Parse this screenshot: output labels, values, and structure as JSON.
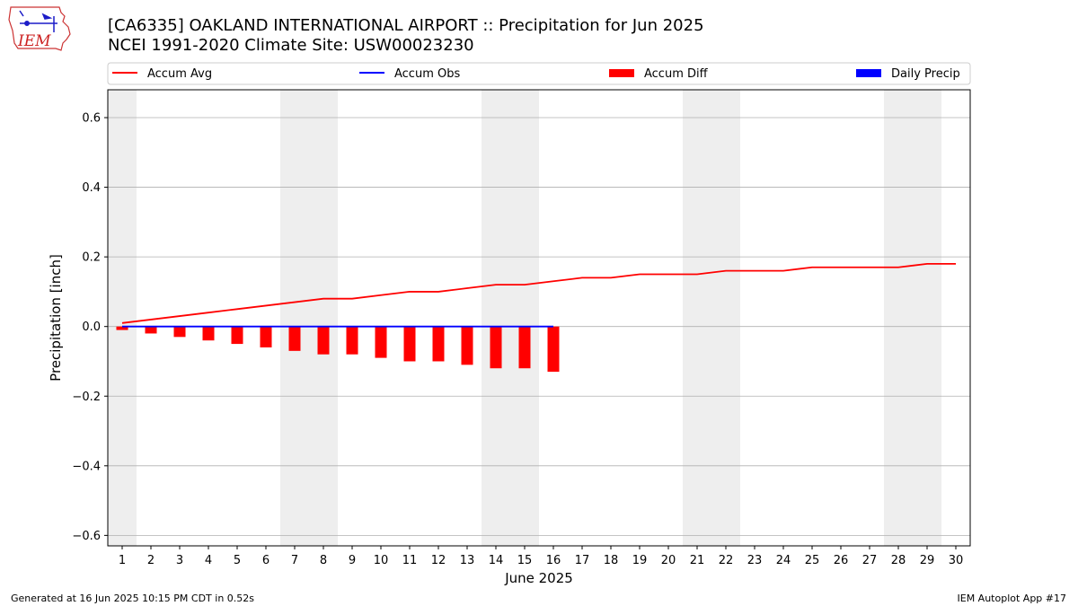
{
  "header": {
    "title": "[CA6335] OAKLAND INTERNATIONAL AIRPORT :: Precipitation for Jun 2025",
    "subtitle": "NCEI 1991-2020 Climate Site: USW00023230"
  },
  "logo": {
    "text": "IEM",
    "icon": "iem-logo-icon"
  },
  "footer": {
    "generated": "Generated at 16 Jun 2025 10:15 PM CDT in 0.52s",
    "app": "IEM Autoplot App #17"
  },
  "chart_data": {
    "type": "bar",
    "xlabel": "June 2025",
    "ylabel": "Precipitation [inch]",
    "xlim": [
      0.5,
      30.5
    ],
    "ylim": [
      -0.63,
      0.68
    ],
    "yticks": [
      -0.6,
      -0.4,
      -0.2,
      0.0,
      0.2,
      0.4,
      0.6
    ],
    "ytick_labels": [
      "−0.6",
      "−0.4",
      "−0.2",
      "0.0",
      "0.2",
      "0.4",
      "0.6"
    ],
    "xticks": [
      1,
      2,
      3,
      4,
      5,
      6,
      7,
      8,
      9,
      10,
      11,
      12,
      13,
      14,
      15,
      16,
      17,
      18,
      19,
      20,
      21,
      22,
      23,
      24,
      25,
      26,
      27,
      28,
      29,
      30
    ],
    "grid": "horizontal",
    "legend_position": "top",
    "weekend_shading": [
      [
        0.5,
        1.5
      ],
      [
        6.5,
        8.5
      ],
      [
        13.5,
        15.5
      ],
      [
        20.5,
        22.5
      ],
      [
        27.5,
        29.5
      ]
    ],
    "colors": {
      "avg": "#ff0000",
      "obs": "#0000ff",
      "diff": "#ff0000",
      "daily": "#0000ff",
      "shade": "#eeeeee",
      "grid": "#b0b0b0"
    },
    "legend": [
      {
        "label": "Accum Avg",
        "kind": "line",
        "color": "#ff0000"
      },
      {
        "label": "Accum Obs",
        "kind": "line",
        "color": "#0000ff"
      },
      {
        "label": "Accum Diff",
        "kind": "bar",
        "color": "#ff0000"
      },
      {
        "label": "Daily Precip",
        "kind": "bar",
        "color": "#0000ff"
      }
    ],
    "series": [
      {
        "name": "Accum Avg",
        "type": "line",
        "x": [
          1,
          2,
          3,
          4,
          5,
          6,
          7,
          8,
          9,
          10,
          11,
          12,
          13,
          14,
          15,
          16,
          17,
          18,
          19,
          20,
          21,
          22,
          23,
          24,
          25,
          26,
          27,
          28,
          29,
          30
        ],
        "values": [
          0.01,
          0.02,
          0.03,
          0.04,
          0.05,
          0.06,
          0.07,
          0.08,
          0.08,
          0.09,
          0.1,
          0.1,
          0.11,
          0.12,
          0.12,
          0.13,
          0.14,
          0.14,
          0.15,
          0.15,
          0.15,
          0.16,
          0.16,
          0.16,
          0.17,
          0.17,
          0.17,
          0.17,
          0.18,
          0.18
        ]
      },
      {
        "name": "Accum Obs",
        "type": "line",
        "x": [
          1,
          2,
          3,
          4,
          5,
          6,
          7,
          8,
          9,
          10,
          11,
          12,
          13,
          14,
          15,
          16
        ],
        "values": [
          0,
          0,
          0,
          0,
          0,
          0,
          0,
          0,
          0,
          0,
          0,
          0,
          0,
          0,
          0,
          0
        ]
      },
      {
        "name": "Accum Diff",
        "type": "bar",
        "x": [
          1,
          2,
          3,
          4,
          5,
          6,
          7,
          8,
          9,
          10,
          11,
          12,
          13,
          14,
          15,
          16
        ],
        "values": [
          -0.01,
          -0.02,
          -0.03,
          -0.04,
          -0.05,
          -0.06,
          -0.07,
          -0.08,
          -0.08,
          -0.09,
          -0.1,
          -0.1,
          -0.11,
          -0.12,
          -0.12,
          -0.13
        ]
      },
      {
        "name": "Daily Precip",
        "type": "bar",
        "x": [
          1,
          2,
          3,
          4,
          5,
          6,
          7,
          8,
          9,
          10,
          11,
          12,
          13,
          14,
          15,
          16
        ],
        "values": [
          0,
          0,
          0,
          0,
          0,
          0,
          0,
          0,
          0,
          0,
          0,
          0,
          0,
          0,
          0,
          0
        ]
      }
    ]
  }
}
